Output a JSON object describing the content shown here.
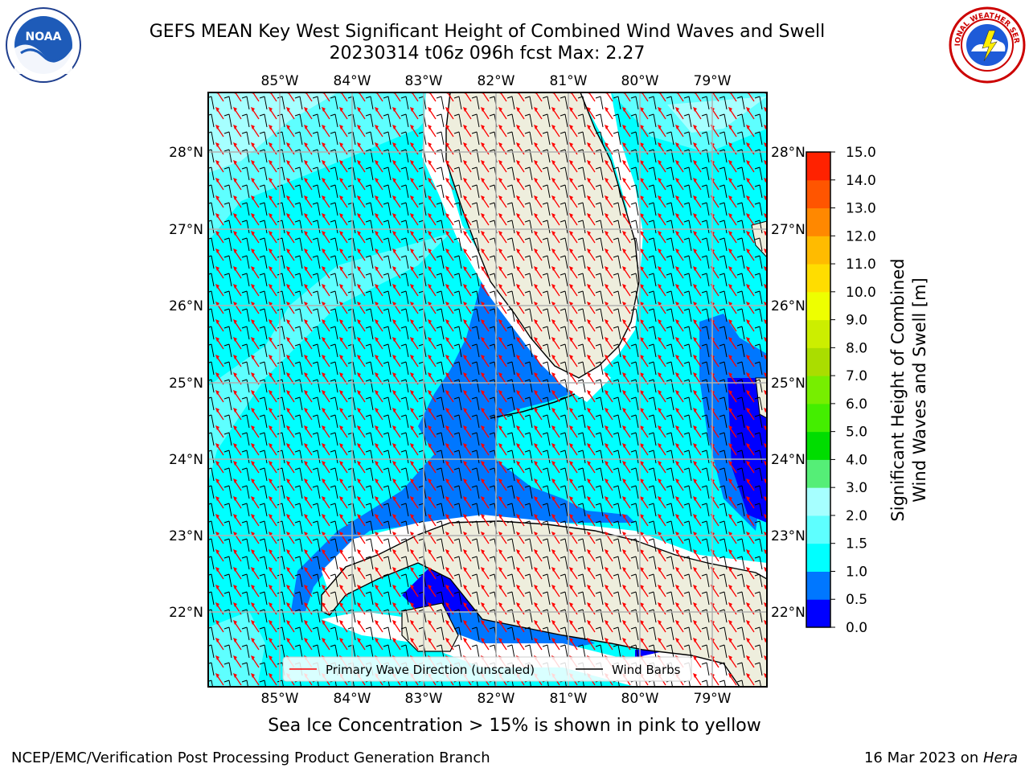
{
  "title": {
    "line1": "GEFS MEAN Key West Significant Height of Combined Wind Waves and Swell",
    "line2": "20230314 t06z 096h fcst   Max: 2.27"
  },
  "logos": {
    "left": {
      "text": "NOAA",
      "icon": "noaa-logo"
    },
    "right": {
      "text": "NATIONAL WEATHER SERVICE",
      "icon": "nws-logo"
    }
  },
  "map": {
    "lon_ticks": [
      "85°W",
      "84°W",
      "83°W",
      "82°W",
      "81°W",
      "80°W",
      "79°W"
    ],
    "lat_ticks": [
      "22°N",
      "23°N",
      "24°N",
      "25°N",
      "26°N",
      "27°N",
      "28°N"
    ],
    "legend": {
      "wave_label": "Primary Wave Direction (unscaled)",
      "barb_label": "Wind Barbs",
      "wave_color": "#ff0000",
      "barb_color": "#000000"
    },
    "colors": {
      "land": "#eeeedd",
      "deep_blue": "#0000ff",
      "blue": "#0077ff",
      "cyan": "#00ffff",
      "light_cyan": "#5effff",
      "pale_cyan": "#a6ffff",
      "ocean_white": "#ffffff",
      "grid": "#b0b0b0"
    }
  },
  "colorbar": {
    "label_line1": "Significant Height of Combined",
    "label_line2": "Wind Waves and Swell [m]",
    "ticks": [
      "0.0",
      "0.5",
      "1.0",
      "1.5",
      "2.0",
      "3.0",
      "4.0",
      "5.0",
      "6.0",
      "7.0",
      "8.0",
      "9.0",
      "10.0",
      "11.0",
      "12.0",
      "13.0",
      "14.0",
      "15.0"
    ],
    "colors": [
      "#0000ff",
      "#0077ff",
      "#00ffff",
      "#5effff",
      "#a6ffff",
      "#55ee77",
      "#00dd00",
      "#44ee00",
      "#77ee00",
      "#aadd00",
      "#ccee00",
      "#eeff00",
      "#ffdd00",
      "#ffbb00",
      "#ff8800",
      "#ff5500",
      "#ff2200"
    ]
  },
  "caption": "Sea Ice Concentration > 15% is shown in pink to yellow",
  "footer": {
    "left": "NCEP/EMC/Verification Post Processing Product Generation Branch",
    "right_prefix": "16 Mar 2023 on ",
    "right_host": "Hera"
  }
}
